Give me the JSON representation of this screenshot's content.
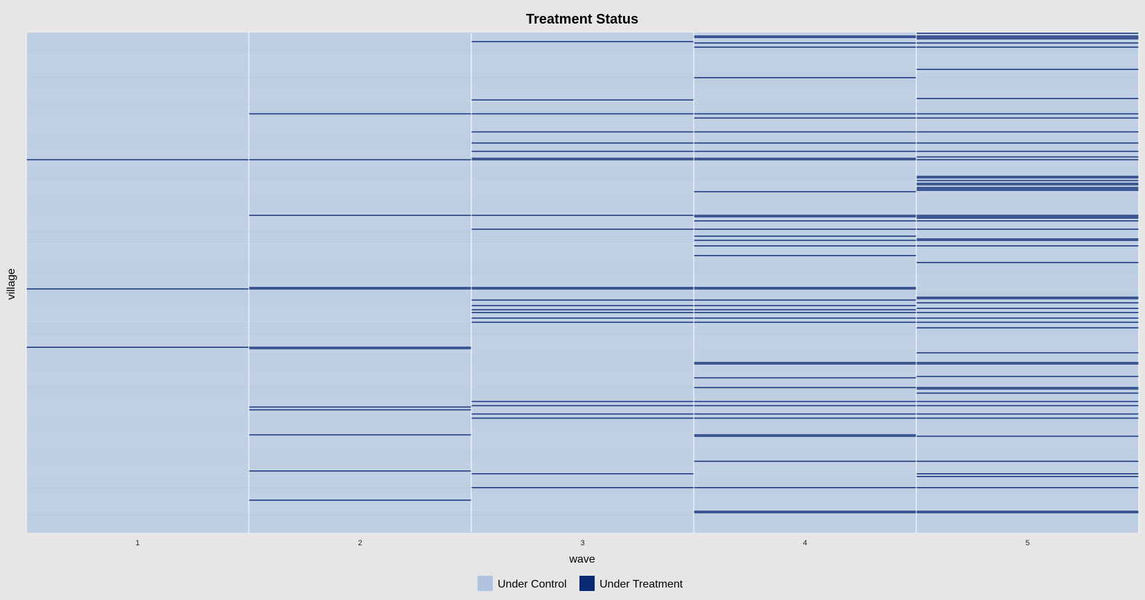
{
  "chart_data": {
    "type": "heatmap",
    "title": "Treatment Status",
    "xlabel": "wave",
    "ylabel": "village",
    "x": [
      "1",
      "2",
      "3",
      "4",
      "5"
    ],
    "n_villages": 360,
    "legend": [
      {
        "label": "Under Control",
        "color": "#b0c4de"
      },
      {
        "label": "Under Treatment",
        "color": "#0b2a74"
      }
    ],
    "legend_position": "bottom",
    "background_color": "#e6e6e6",
    "grid_line_color": "#ffffff",
    "treated_rows": [
      [
        91,
        184,
        226
      ],
      [
        58,
        91,
        131,
        183,
        184,
        226,
        227,
        269,
        271,
        289,
        315,
        336
      ],
      [
        6,
        48,
        58,
        71,
        79,
        85,
        90,
        91,
        131,
        141,
        183,
        184,
        192,
        196,
        199,
        201,
        205,
        208,
        265,
        268,
        274,
        277,
        317,
        327
      ],
      [
        2,
        3,
        7,
        10,
        32,
        58,
        61,
        71,
        79,
        85,
        90,
        91,
        114,
        131,
        132,
        135,
        141,
        146,
        149,
        153,
        160,
        183,
        184,
        192,
        196,
        199,
        201,
        205,
        208,
        237,
        238,
        248,
        255,
        265,
        268,
        274,
        277,
        289,
        290,
        308,
        327,
        344,
        345
      ],
      [
        0,
        2,
        3,
        4,
        7,
        10,
        26,
        47,
        58,
        61,
        71,
        79,
        85,
        89,
        91,
        103,
        104,
        106,
        108,
        109,
        111,
        112,
        113,
        131,
        132,
        133,
        135,
        141,
        148,
        149,
        153,
        165,
        190,
        191,
        194,
        198,
        201,
        205,
        208,
        212,
        230,
        237,
        238,
        247,
        255,
        256,
        259,
        265,
        268,
        274,
        277,
        290,
        308,
        317,
        319,
        327,
        344,
        345
      ]
    ]
  }
}
